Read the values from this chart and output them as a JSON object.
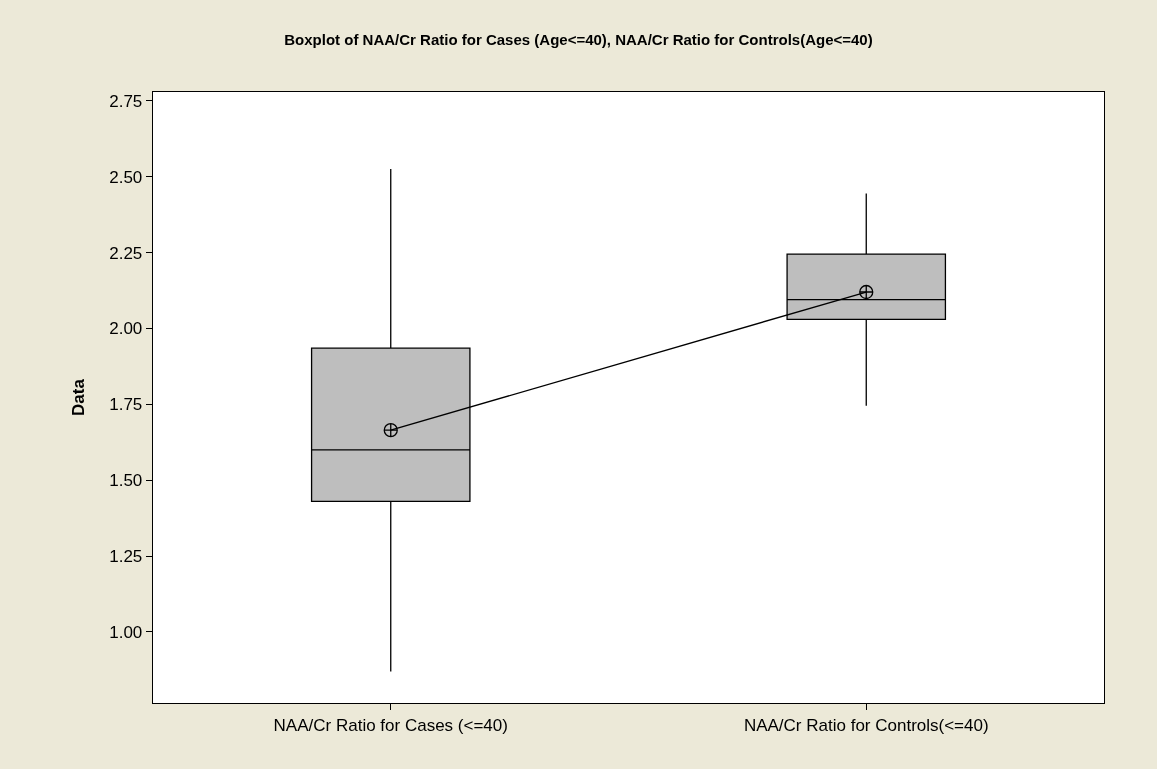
{
  "chart_data": {
    "type": "box",
    "title": "Boxplot of NAA/Cr Ratio for Cases (Age<=40), NAA/Cr Ratio for Controls(Age<=40)",
    "ylabel": "Data",
    "categories": [
      "NAA/Cr Ratio for Cases (<=40)",
      "NAA/Cr Ratio for Controls(<=40)"
    ],
    "series": [
      {
        "color": "#bebebe",
        "boxes": [
          {
            "low": 0.87,
            "q1": 1.43,
            "median": 1.6,
            "q3": 1.935,
            "high": 2.525,
            "mean": 1.665
          },
          {
            "low": 1.745,
            "q1": 2.03,
            "median": 2.095,
            "q3": 2.245,
            "high": 2.445,
            "mean": 2.12
          }
        ]
      },
      {
        "type": "line",
        "color": "#000000",
        "marker": "none",
        "values": [
          1.665,
          2.12
        ]
      }
    ],
    "ylim": [
      0.766,
      2.779
    ],
    "yticks": [
      {
        "value": 1,
        "label": "1.00"
      },
      {
        "value": 1.25,
        "label": "1.25"
      },
      {
        "value": 1.5,
        "label": "1.50"
      },
      {
        "value": 1.75,
        "label": "1.75"
      },
      {
        "value": 2,
        "label": "2.00"
      },
      {
        "value": 2.25,
        "label": "2.25"
      },
      {
        "value": 2.5,
        "label": "2.50"
      },
      {
        "value": 2.75,
        "label": "2.75"
      }
    ],
    "grid": false
  }
}
